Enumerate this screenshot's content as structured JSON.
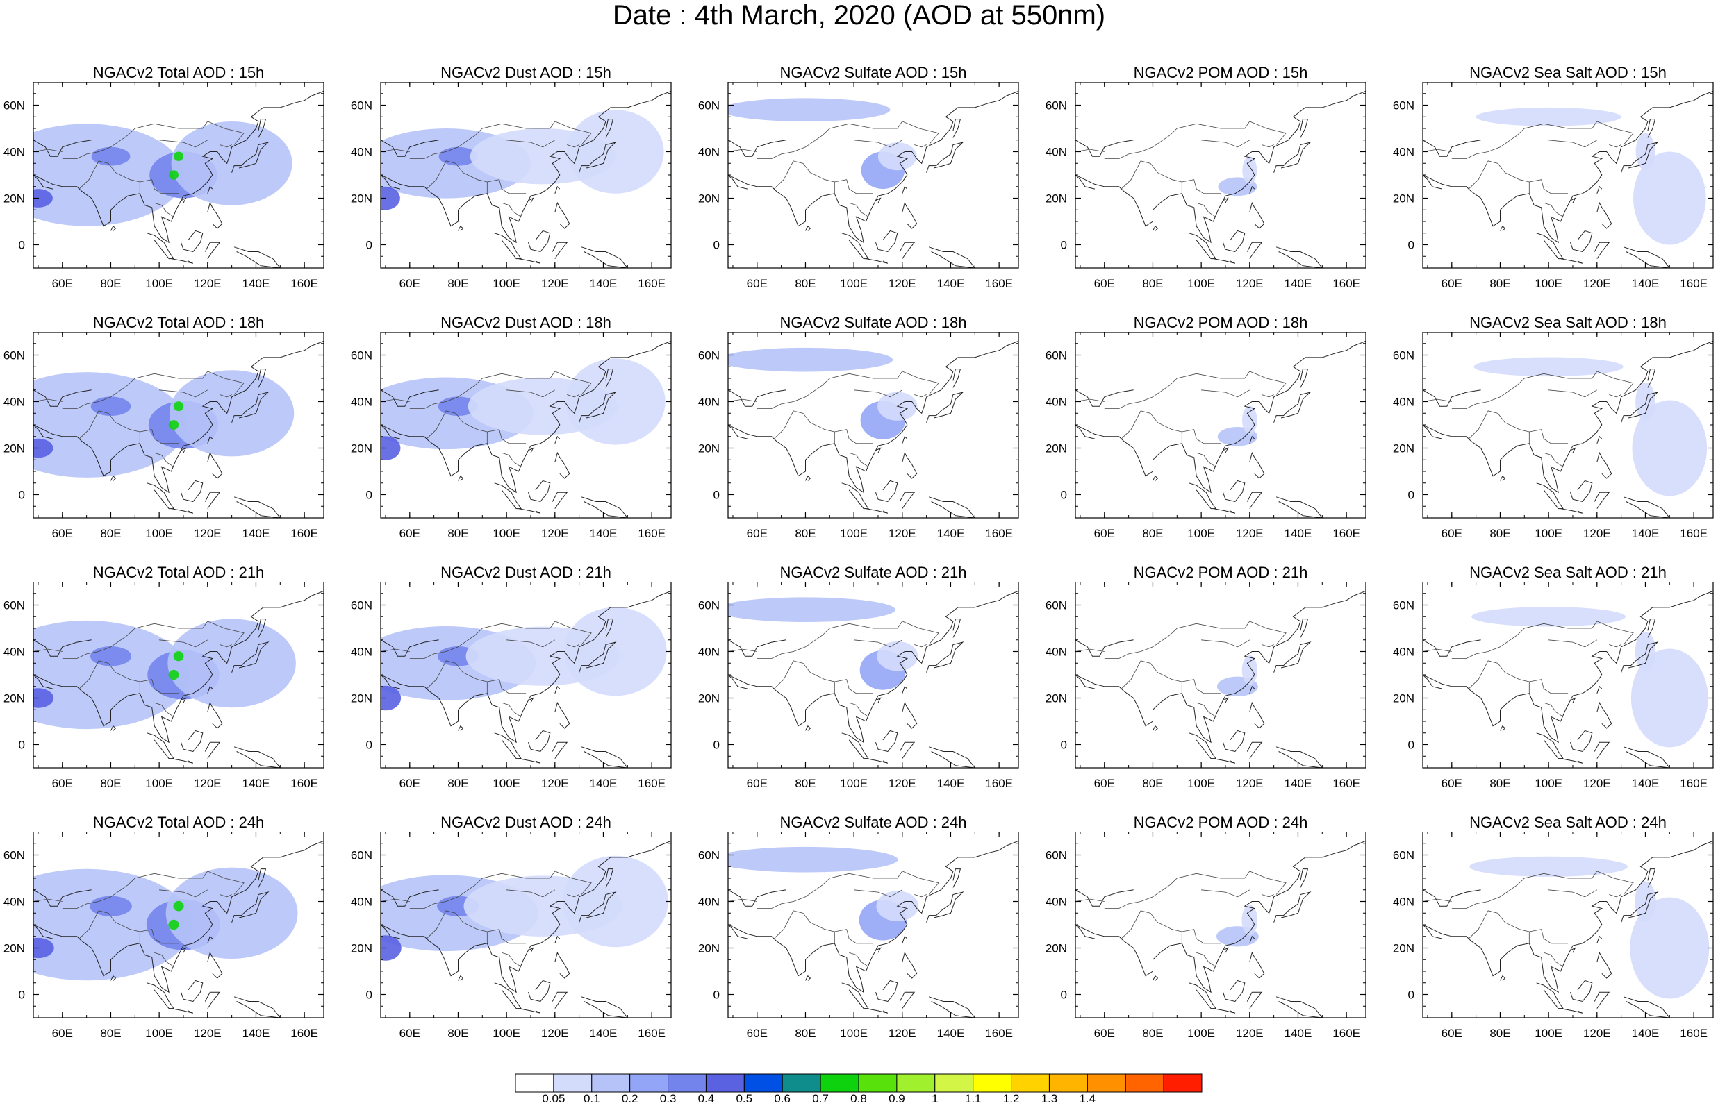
{
  "title": "Date : 4th March, 2020 (AOD at 550nm)",
  "map": {
    "lon_range": [
      48,
      168
    ],
    "lat_range": [
      -10,
      70
    ],
    "lon_ticks": [
      60,
      80,
      100,
      120,
      140,
      160
    ],
    "lon_tick_labels": [
      "60E",
      "80E",
      "100E",
      "120E",
      "140E",
      "160E"
    ],
    "lat_ticks": [
      0,
      20,
      40,
      60
    ],
    "lat_tick_labels": [
      "0",
      "20N",
      "40N",
      "60N"
    ]
  },
  "panels": [
    {
      "title": "NGACv2 Total AOD : 15h",
      "field": "total",
      "hour": 15
    },
    {
      "title": "NGACv2 Dust AOD : 15h",
      "field": "dust",
      "hour": 15
    },
    {
      "title": "NGACv2 Sulfate AOD : 15h",
      "field": "sulfate",
      "hour": 15
    },
    {
      "title": "NGACv2 POM AOD : 15h",
      "field": "pom",
      "hour": 15
    },
    {
      "title": "NGACv2 Sea Salt AOD : 15h",
      "field": "seasalt",
      "hour": 15
    },
    {
      "title": "NGACv2 Total AOD : 18h",
      "field": "total",
      "hour": 18
    },
    {
      "title": "NGACv2 Dust AOD : 18h",
      "field": "dust",
      "hour": 18
    },
    {
      "title": "NGACv2 Sulfate AOD : 18h",
      "field": "sulfate",
      "hour": 18
    },
    {
      "title": "NGACv2 POM AOD : 18h",
      "field": "pom",
      "hour": 18
    },
    {
      "title": "NGACv2 Sea Salt AOD : 18h",
      "field": "seasalt",
      "hour": 18
    },
    {
      "title": "NGACv2 Total AOD : 21h",
      "field": "total",
      "hour": 21
    },
    {
      "title": "NGACv2 Dust AOD : 21h",
      "field": "dust",
      "hour": 21
    },
    {
      "title": "NGACv2 Sulfate AOD : 21h",
      "field": "sulfate",
      "hour": 21
    },
    {
      "title": "NGACv2 POM AOD : 21h",
      "field": "pom",
      "hour": 21
    },
    {
      "title": "NGACv2 Sea Salt AOD : 21h",
      "field": "seasalt",
      "hour": 21
    },
    {
      "title": "NGACv2 Total AOD : 24h",
      "field": "total",
      "hour": 24
    },
    {
      "title": "NGACv2 Dust AOD : 24h",
      "field": "dust",
      "hour": 24
    },
    {
      "title": "NGACv2 Sulfate AOD : 24h",
      "field": "sulfate",
      "hour": 24
    },
    {
      "title": "NGACv2 POM AOD : 24h",
      "field": "pom",
      "hour": 24
    },
    {
      "title": "NGACv2 Sea Salt  AOD : 24h",
      "field": "seasalt",
      "hour": 24
    }
  ],
  "aerosol_features": {
    "total": [
      {
        "lon": 70,
        "lat": 30,
        "rx": 40,
        "ry": 22,
        "aod": 0.12
      },
      {
        "lon": 110,
        "lat": 30,
        "rx": 14,
        "ry": 10,
        "aod": 0.35
      },
      {
        "lon": 80,
        "lat": 38,
        "rx": 8,
        "ry": 4,
        "aod": 0.3
      },
      {
        "lon": 50,
        "lat": 20,
        "rx": 6,
        "ry": 4,
        "aod": 0.4
      },
      {
        "lon": 130,
        "lat": 35,
        "rx": 25,
        "ry": 18,
        "aod": 0.1
      },
      {
        "lon": 108,
        "lat": 38,
        "rx": 2,
        "ry": 2,
        "aod": 0.7
      },
      {
        "lon": 106,
        "lat": 30,
        "rx": 2,
        "ry": 2,
        "aod": 0.7
      }
    ],
    "dust": [
      {
        "lon": 75,
        "lat": 35,
        "rx": 35,
        "ry": 15,
        "aod": 0.12
      },
      {
        "lon": 80,
        "lat": 38,
        "rx": 8,
        "ry": 4,
        "aod": 0.3
      },
      {
        "lon": 50,
        "lat": 20,
        "rx": 6,
        "ry": 5,
        "aod": 0.4
      },
      {
        "lon": 115,
        "lat": 38,
        "rx": 30,
        "ry": 12,
        "aod": 0.08
      },
      {
        "lon": 145,
        "lat": 40,
        "rx": 20,
        "ry": 18,
        "aod": 0.06
      }
    ],
    "sulfate": [
      {
        "lon": 80,
        "lat": 58,
        "rx": 35,
        "ry": 5,
        "aod": 0.1
      },
      {
        "lon": 112,
        "lat": 32,
        "rx": 9,
        "ry": 8,
        "aod": 0.25
      },
      {
        "lon": 118,
        "lat": 38,
        "rx": 8,
        "ry": 6,
        "aod": 0.08
      }
    ],
    "pom": [
      {
        "lon": 115,
        "lat": 25,
        "rx": 8,
        "ry": 4,
        "aod": 0.1
      },
      {
        "lon": 120,
        "lat": 32,
        "rx": 3,
        "ry": 6,
        "aod": 0.08
      }
    ],
    "seasalt": [
      {
        "lon": 150,
        "lat": 20,
        "rx": 15,
        "ry": 20,
        "aod": 0.07
      },
      {
        "lon": 140,
        "lat": 40,
        "rx": 4,
        "ry": 8,
        "aod": 0.08
      },
      {
        "lon": 100,
        "lat": 55,
        "rx": 30,
        "ry": 4,
        "aod": 0.06
      }
    ]
  },
  "colorbar": {
    "colors": [
      "#ffffff",
      "#d4dcfc",
      "#b6c3f8",
      "#93a5f6",
      "#7384ec",
      "#5a62e2",
      "#0050e6",
      "#0f8c8c",
      "#0fd20f",
      "#58e10a",
      "#a0f02d",
      "#d2f546",
      "#ffff00",
      "#ffd200",
      "#ffb400",
      "#ff9000",
      "#ff6400",
      "#ff1e00"
    ],
    "labels": [
      "0.05",
      "0.1",
      "0.2",
      "0.3",
      "0.4",
      "0.5",
      "0.6",
      "0.7",
      "0.8",
      "0.9",
      "1",
      "1.1",
      "1.2",
      "1.3",
      "1.4"
    ],
    "thresholds": [
      0.05,
      0.1,
      0.2,
      0.3,
      0.4,
      0.5,
      0.6,
      0.7,
      0.8,
      0.9,
      1,
      1.1,
      1.2,
      1.3,
      1.4
    ]
  }
}
